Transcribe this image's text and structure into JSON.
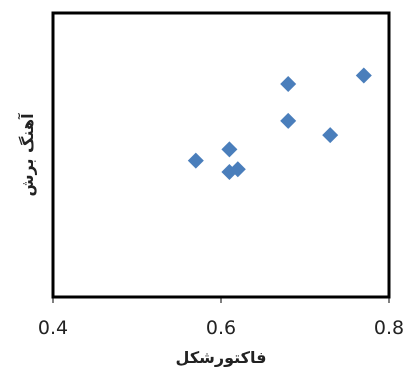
{
  "chart_data": {
    "type": "scatter",
    "title": "",
    "xlabel": "فاکتورشکل",
    "ylabel": "آهنگ برش",
    "xlim": [
      0.4,
      0.8
    ],
    "x_ticks": [
      "0.4",
      "0.6",
      "0.8"
    ],
    "y_ticks": [],
    "grid": false,
    "legend": "none",
    "marker": "diamond",
    "marker_color": "#4a7ebb",
    "frame_color": "#000000",
    "points": [
      {
        "x": 0.57,
        "y": 0.48
      },
      {
        "x": 0.61,
        "y": 0.52
      },
      {
        "x": 0.61,
        "y": 0.44
      },
      {
        "x": 0.62,
        "y": 0.45
      },
      {
        "x": 0.68,
        "y": 0.62
      },
      {
        "x": 0.68,
        "y": 0.75
      },
      {
        "x": 0.73,
        "y": 0.57
      },
      {
        "x": 0.77,
        "y": 0.78
      }
    ]
  }
}
